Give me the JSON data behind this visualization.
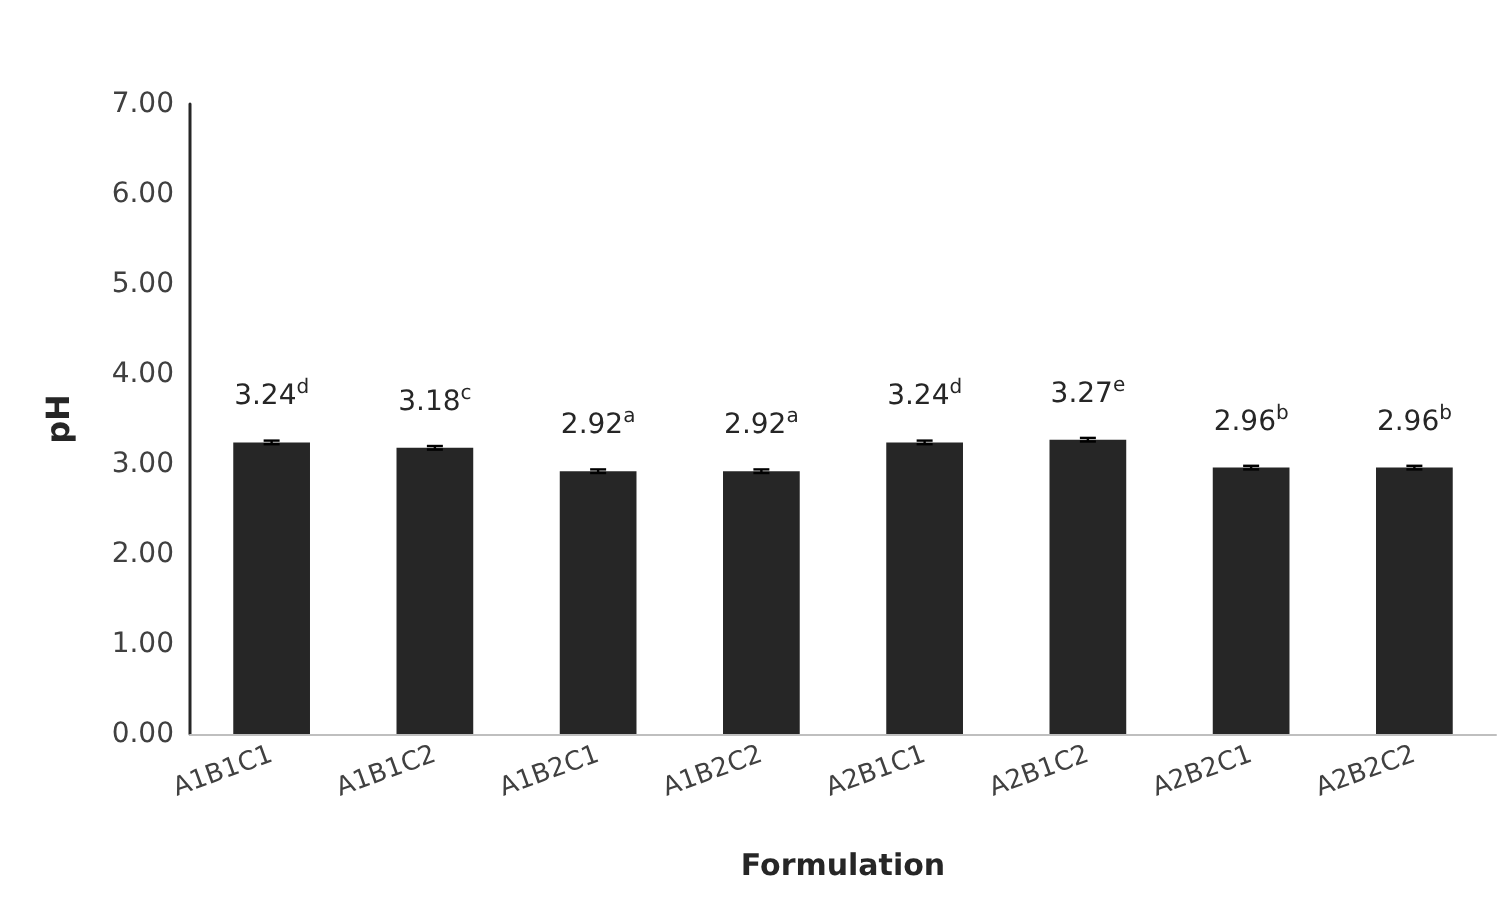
{
  "chart_data": {
    "type": "bar",
    "xlabel": "Formulation",
    "ylabel": "pH",
    "categories": [
      "A1B1C1",
      "A1B1C2",
      "A1B2C1",
      "A1B2C2",
      "A2B1C1",
      "A2B1C2",
      "A2B2C1",
      "A2B2C2"
    ],
    "values": [
      3.24,
      3.18,
      2.92,
      2.92,
      3.24,
      3.27,
      2.96,
      2.96
    ],
    "errors": [
      0.02,
      0.02,
      0.02,
      0.02,
      0.02,
      0.02,
      0.02,
      0.02
    ],
    "value_labels": [
      "3.24$^{d}$",
      "3.18$^{c}$",
      "2.92$^{a}$",
      "2.92$^{a}$",
      "3.24$^{d}$",
      "3.27$^{e}$",
      "2.96$^{b}$",
      "2.96$^{b}$"
    ],
    "color": "#262626",
    "ylim": [
      0,
      7
    ],
    "yticks": [
      {
        "value": 0,
        "label": "0.00"
      },
      {
        "value": 1,
        "label": "1.00"
      },
      {
        "value": 2,
        "label": "2.00"
      },
      {
        "value": 3,
        "label": "3.00"
      },
      {
        "value": 4,
        "label": "4.00"
      },
      {
        "value": 5,
        "label": "5.00"
      },
      {
        "value": 6,
        "label": "6.00"
      },
      {
        "value": 7,
        "label": "7.00"
      }
    ],
    "grid": false
  }
}
